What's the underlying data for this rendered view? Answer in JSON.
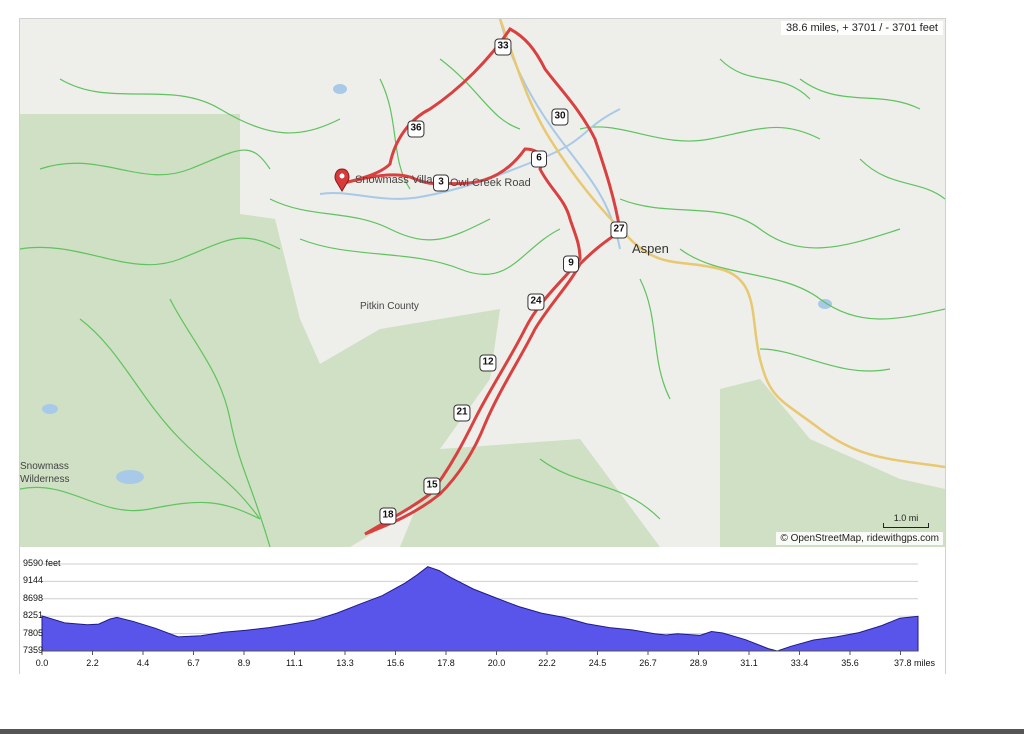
{
  "route_stats": "38.6 miles, + 3701 / - 3701 feet",
  "attribution": "© OpenStreetMap, ridewithgps.com",
  "scale": "1.0 mi",
  "places": {
    "aspen": "Aspen",
    "pitkin": "Pitkin County",
    "snowmass_village": "Snowmass Village",
    "owl_creek_road": "Owl Creek Road",
    "snowmass_wilderness_1": "Snowmass",
    "snowmass_wilderness_2": "Wilderness"
  },
  "cue_markers": [
    "33",
    "30",
    "36",
    "6",
    "3",
    "27",
    "9",
    "24",
    "12",
    "21",
    "15",
    "18"
  ],
  "colors": {
    "route": "#d94040",
    "profile_fill": "#5a55ea",
    "forest": "#cfe0c4",
    "trail": "#5fc35f",
    "highway": "#e8c870",
    "water": "#a9c9e8"
  },
  "elevation_profile": {
    "y_ticks": [
      "9590 feet",
      "9144",
      "8698",
      "8251",
      "7805",
      "7359"
    ],
    "x_ticks": [
      "0.0",
      "2.2",
      "4.4",
      "6.7",
      "8.9",
      "11.1",
      "13.3",
      "15.6",
      "17.8",
      "20.0",
      "22.2",
      "24.5",
      "26.7",
      "28.9",
      "31.1",
      "33.4",
      "35.6",
      "37.8 miles"
    ]
  },
  "chart_data": {
    "type": "area",
    "xlabel": "miles",
    "ylabel": "feet",
    "xlim": [
      0,
      38.6
    ],
    "ylim": [
      7359,
      9590
    ],
    "x": [
      0,
      1,
      2,
      2.5,
      3,
      3.3,
      4,
      5,
      6,
      7,
      8,
      9,
      10,
      11,
      12,
      13,
      14,
      15,
      16,
      16.5,
      17,
      17.5,
      18,
      19,
      20,
      21,
      22,
      23,
      24,
      25,
      26,
      27,
      27.5,
      28,
      29,
      29.5,
      30,
      31,
      32,
      32.4,
      33,
      34,
      35,
      36,
      37,
      37.8,
      38.6
    ],
    "series": [
      {
        "values": [
          8260,
          8080,
          8030,
          8050,
          8180,
          8220,
          8120,
          7940,
          7720,
          7750,
          7840,
          7890,
          7960,
          8050,
          8150,
          8330,
          8560,
          8780,
          9100,
          9300,
          9520,
          9420,
          9250,
          8950,
          8720,
          8500,
          8330,
          8220,
          8060,
          7960,
          7900,
          7800,
          7770,
          7800,
          7760,
          7860,
          7820,
          7650,
          7420,
          7360,
          7480,
          7640,
          7720,
          7830,
          8010,
          8200,
          8250
        ]
      }
    ]
  }
}
